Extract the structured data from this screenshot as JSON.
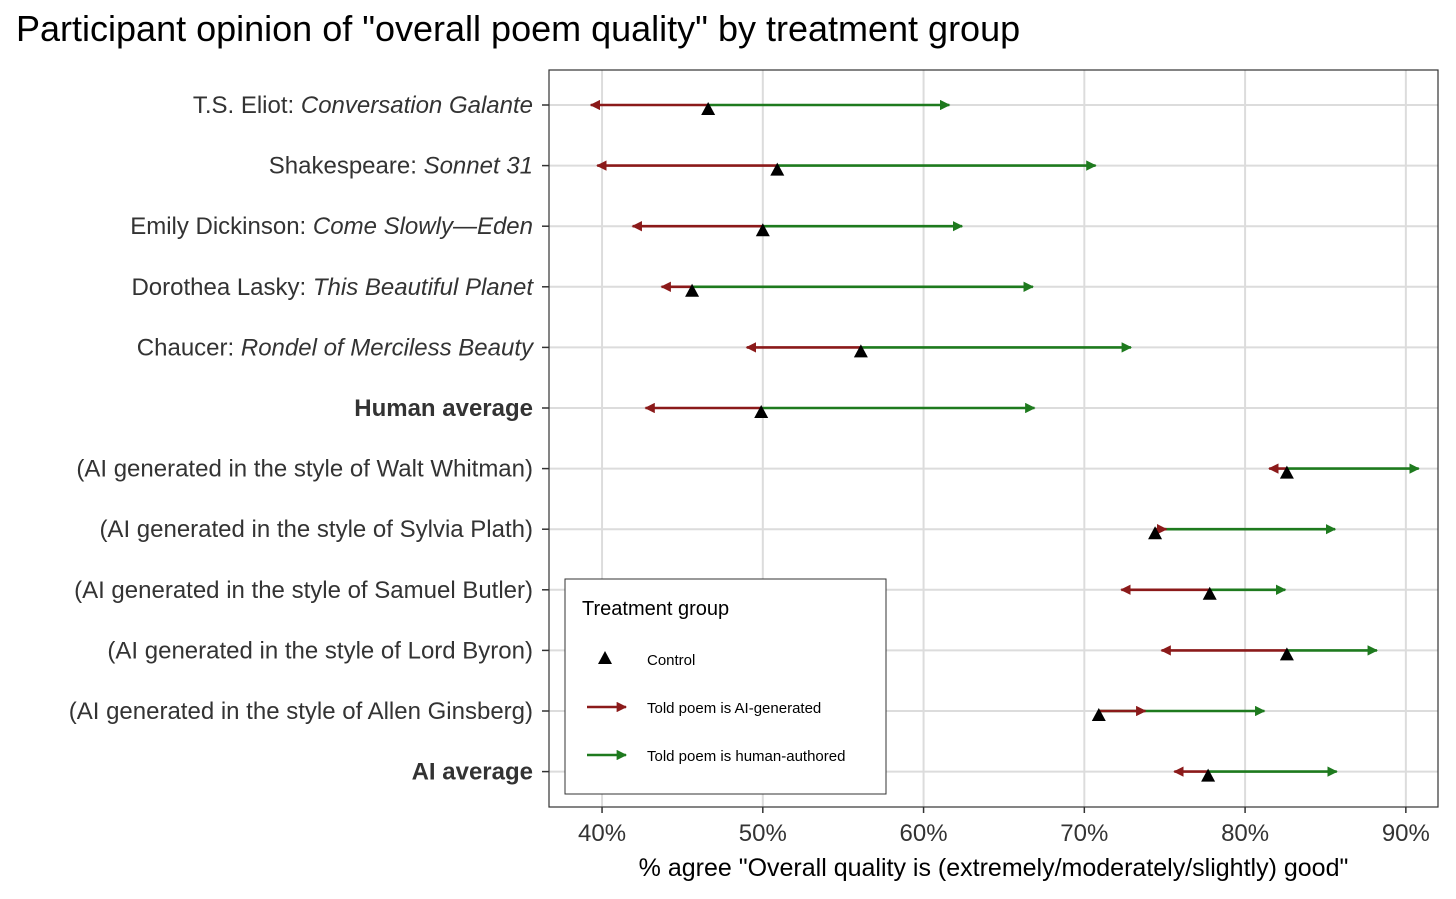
{
  "title": "Participant opinion of \"overall poem quality\" by treatment group",
  "colors": {
    "control": "#000000",
    "ai_told": "#8b1a1a",
    "human_told": "#1e7a1e",
    "grid": "#dcdcdc",
    "panel_border": "#333333"
  },
  "legend": {
    "title": "Treatment group",
    "items": [
      {
        "label": "Control",
        "key": "control",
        "shape": "triangle"
      },
      {
        "label": "Told poem is AI-generated",
        "key": "ai_told",
        "shape": "arrow"
      },
      {
        "label": "Told poem is human-authored",
        "key": "human_told",
        "shape": "arrow"
      }
    ]
  },
  "chart_data": {
    "type": "dumbbell-arrow",
    "title": "Participant opinion of \"overall poem quality\" by treatment group",
    "xlabel": "% agree \"Overall quality is (extremely/moderately/slightly) good\"",
    "ylabel": "",
    "xlim": [
      36.7,
      92.0
    ],
    "xticks": [
      40,
      50,
      60,
      70,
      80,
      90
    ],
    "xtick_labels": [
      "40%",
      "50%",
      "60%",
      "70%",
      "80%",
      "90%"
    ],
    "grid": true,
    "legend_position": "bottom-left (inside)",
    "rows": [
      {
        "author": "T.S. Eliot: ",
        "work": "Conversation Galante",
        "bold": false,
        "control": 46.6,
        "ai_told": 39.3,
        "human_told": 61.6
      },
      {
        "author": "Shakespeare: ",
        "work": "Sonnet 31",
        "bold": false,
        "control": 50.9,
        "ai_told": 39.7,
        "human_told": 70.7
      },
      {
        "author": "Emily Dickinson: ",
        "work": "Come Slowly—Eden",
        "bold": false,
        "control": 50.0,
        "ai_told": 41.9,
        "human_told": 62.4
      },
      {
        "author": "Dorothea Lasky: ",
        "work": "This Beautiful Planet",
        "bold": false,
        "control": 45.6,
        "ai_told": 43.7,
        "human_told": 66.8
      },
      {
        "author": "Chaucer: ",
        "work": "Rondel of Merciless Beauty",
        "bold": false,
        "control": 56.1,
        "ai_told": 49.0,
        "human_told": 72.9
      },
      {
        "author": "Human average",
        "work": "",
        "bold": true,
        "control": 49.9,
        "ai_told": 42.7,
        "human_told": 66.9
      },
      {
        "author": "(AI generated in the style of Walt Whitman)",
        "work": "",
        "bold": false,
        "control": 82.6,
        "ai_told": 81.5,
        "human_told": 90.8
      },
      {
        "author": "(AI generated in the style of Sylvia Plath)",
        "work": "",
        "bold": false,
        "control": 74.4,
        "ai_told": 75.1,
        "human_told": 85.6
      },
      {
        "author": "(AI generated in the style of Samuel Butler)",
        "work": "",
        "bold": false,
        "control": 77.8,
        "ai_told": 72.3,
        "human_told": 82.5
      },
      {
        "author": "(AI generated in the style of Lord Byron)",
        "work": "",
        "bold": false,
        "control": 82.6,
        "ai_told": 74.8,
        "human_told": 88.2
      },
      {
        "author": "(AI generated in the style of Allen Ginsberg)",
        "work": "",
        "bold": false,
        "control": 70.9,
        "ai_told": 73.8,
        "human_told": 81.2
      },
      {
        "author": "AI average",
        "work": "",
        "bold": true,
        "control": 77.7,
        "ai_told": 75.6,
        "human_told": 85.7
      }
    ]
  }
}
